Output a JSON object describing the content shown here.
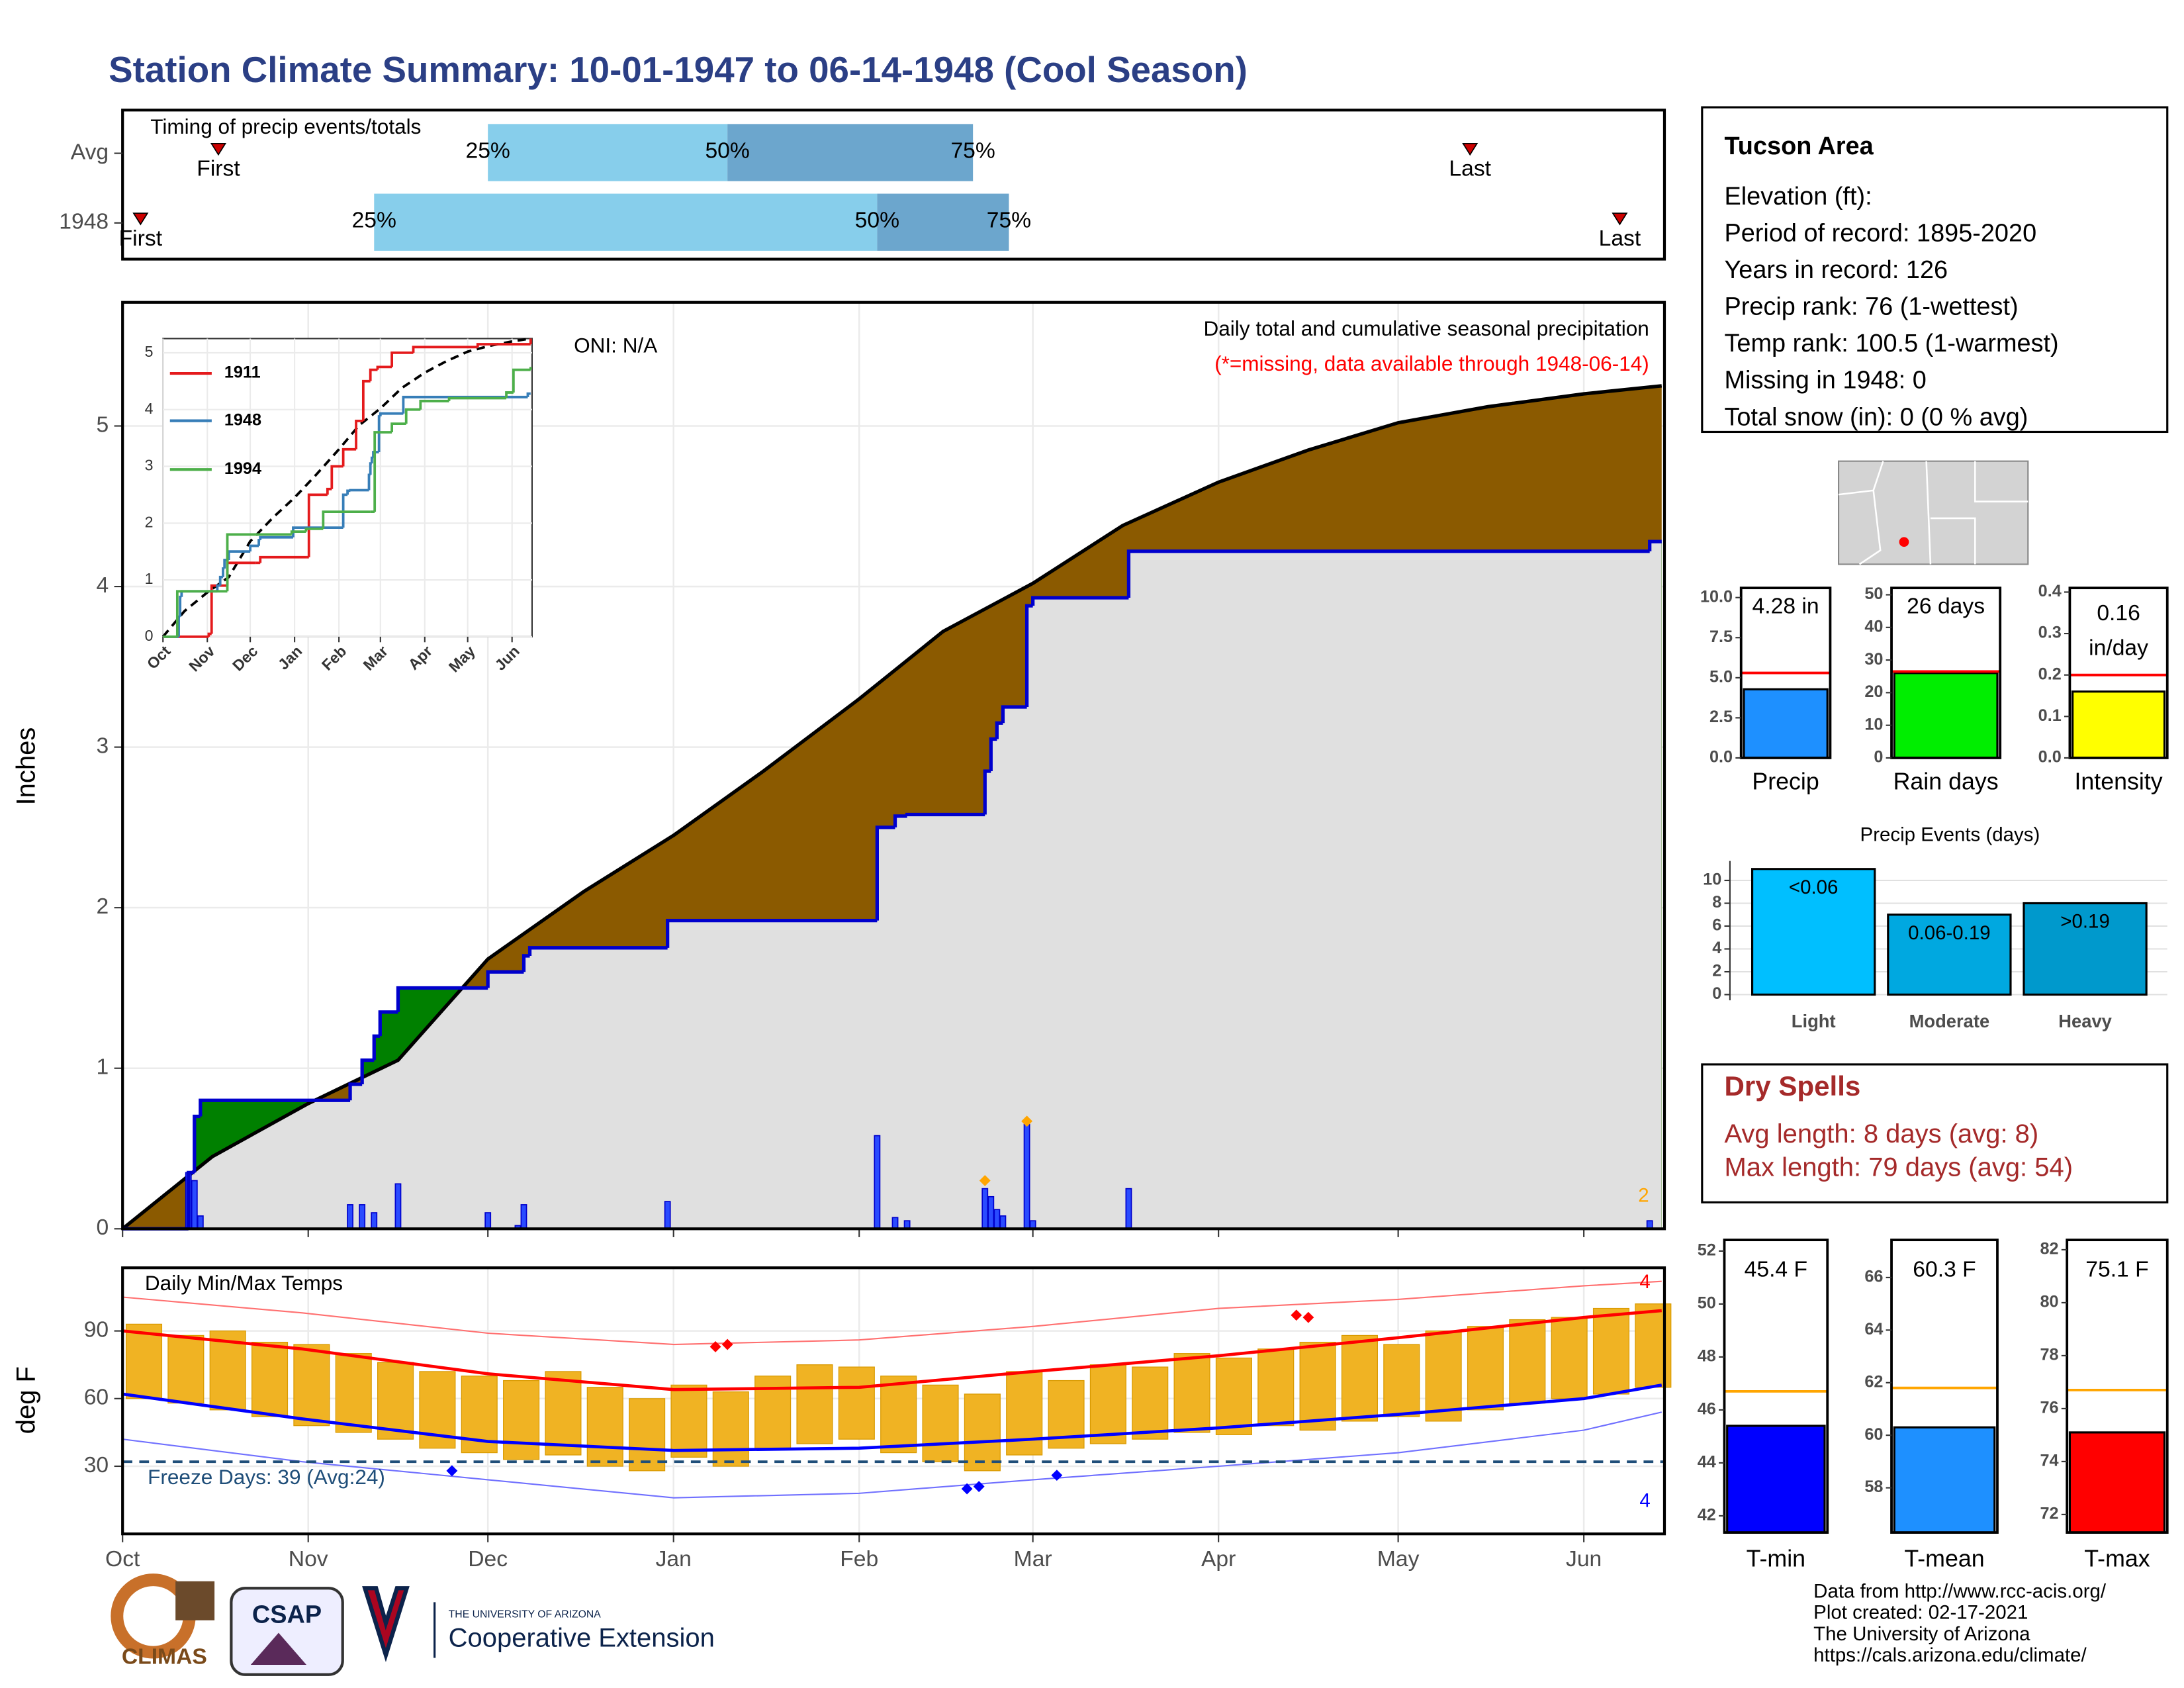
{
  "title": "Station Climate Summary: 10-01-1947 to 06-14-1948 (Cool Season)",
  "info": {
    "title": "Tucson Area",
    "lines": [
      "Elevation (ft):",
      "Period of record: 1895-2020",
      "Years in record: 126",
      "Precip rank: 76 (1-wettest)",
      "Temp rank: 100.5 (1-warmest)",
      "Missing in 1948: 0",
      "Total snow (in): 0 (0 % avg)"
    ]
  },
  "dry_spells": {
    "title": "Dry Spells",
    "lines": [
      "Avg length: 8 days (avg: 8)",
      "Max length: 79 days (avg: 54)"
    ]
  },
  "footer": {
    "lines": [
      "Data from http://www.rcc-acis.org/",
      "Plot created: 02-17-2021",
      "The University of Arizona",
      "https://cals.arizona.edu/climate/"
    ],
    "logos": [
      "CLIMAS",
      "CSAP",
      "THE UNIVERSITY OF ARIZONA",
      "Cooperative Extension"
    ]
  },
  "chart_data": [
    {
      "type": "timeline",
      "title": "Timing of precip events/totals",
      "xlim": [
        0,
        257
      ],
      "rows": [
        {
          "name": "Avg",
          "first": 16,
          "p25": 61,
          "p50": 101,
          "p75": 142,
          "last": 225
        },
        {
          "name": "1948",
          "first": 3,
          "p25": 42,
          "p50": 126,
          "p75": 148,
          "last": 250
        }
      ],
      "labels": {
        "first": "First",
        "p25": "25%",
        "p50": "50%",
        "p75": "75%",
        "last": "Last"
      },
      "colors": [
        "#87ceeb",
        "#6ca6cd"
      ],
      "marker_color": "#cc0000"
    },
    {
      "type": "area",
      "title": "Daily total and cumulative seasonal precipitation",
      "note": "(*=missing, data available through 1948-06-14)",
      "annotation": "ONI: N/A",
      "count_label": "2",
      "y_label": "Inches",
      "xlim": [
        0,
        257
      ],
      "ylim": [
        0,
        5.77
      ],
      "yticks": [
        0,
        1,
        2,
        3,
        4,
        5
      ],
      "grid": true,
      "average": {
        "x": [
          0,
          15,
          31,
          46,
          61,
          77,
          92,
          107,
          123,
          137,
          152,
          167,
          183,
          198,
          213,
          228,
          244,
          257
        ],
        "values": [
          0,
          0.45,
          0.78,
          1.05,
          1.68,
          2.1,
          2.45,
          2.85,
          3.3,
          3.72,
          4.02,
          4.38,
          4.65,
          4.85,
          5.02,
          5.12,
          5.2,
          5.25
        ],
        "color": "#8b5a00"
      },
      "year": {
        "x": [
          0,
          11,
          12,
          13,
          38,
          40,
          42,
          43,
          46,
          61,
          67,
          68,
          91,
          126,
          129,
          131,
          144,
          145,
          146,
          147,
          151,
          152,
          168,
          255
        ],
        "values": [
          0,
          0.35,
          0.7,
          0.8,
          0.9,
          1.05,
          1.2,
          1.35,
          1.5,
          1.6,
          1.7,
          1.75,
          1.92,
          2.5,
          2.57,
          2.58,
          2.85,
          3.05,
          3.15,
          3.25,
          3.88,
          3.93,
          4.22,
          4.28
        ],
        "color": "#0000cd",
        "above_color": "#008000",
        "below_color": "#e0e0e0"
      },
      "daily": {
        "x": [
          11,
          12,
          13,
          38,
          40,
          42,
          46,
          61,
          66,
          67,
          91,
          126,
          129,
          131,
          144,
          145,
          146,
          147,
          151,
          152,
          168,
          255
        ],
        "values": [
          0.35,
          0.3,
          0.08,
          0.15,
          0.15,
          0.1,
          0.28,
          0.1,
          0.02,
          0.15,
          0.17,
          0.58,
          0.07,
          0.05,
          0.25,
          0.2,
          0.12,
          0.08,
          0.65,
          0.05,
          0.25,
          0.05
        ],
        "color": "#2a4bff"
      },
      "flagged": {
        "x": [
          144,
          151
        ],
        "values": [
          0.3,
          0.67
        ],
        "color": "#ffa500"
      }
    },
    {
      "type": "line",
      "xlim": [
        0,
        258
      ],
      "ylim": [
        0,
        5.25
      ],
      "yticks": [
        0,
        1,
        2,
        3,
        4,
        5
      ],
      "series": [
        {
          "name": "1911",
          "color": "#e41a1c",
          "x": [
            0,
            32,
            34,
            45,
            65,
            68,
            100,
            102,
            115,
            118,
            125,
            126,
            135,
            140,
            145,
            150,
            160,
            175,
            220,
            257
          ],
          "values": [
            0,
            0.05,
            0.9,
            1.3,
            1.3,
            1.4,
            1.4,
            2.5,
            2.6,
            3.0,
            3.0,
            3.3,
            3.8,
            4.5,
            4.7,
            4.75,
            5.0,
            5.1,
            5.15,
            5.25
          ]
        },
        {
          "name": "1948",
          "color": "#377eb8"
        },
        {
          "name": "1994",
          "color": "#4daf4a",
          "x": [
            0,
            10,
            35,
            45,
            90,
            100,
            110,
            112,
            145,
            148,
            160,
            170,
            180,
            200,
            240,
            245,
            257
          ],
          "values": [
            0,
            0.8,
            0.8,
            1.8,
            1.85,
            1.9,
            1.9,
            2.2,
            2.2,
            3.6,
            3.75,
            4.0,
            4.15,
            4.2,
            4.3,
            4.7,
            4.75
          ]
        }
      ]
    },
    {
      "type": "range-bar",
      "title": "Daily Min/Max Temps",
      "y_label": "deg F",
      "xlim": [
        0,
        257
      ],
      "ylim": [
        0,
        118
      ],
      "yticks": [
        30,
        60,
        90
      ],
      "grid": true,
      "xticks": [
        {
          "value": 0,
          "label": "Oct"
        },
        {
          "value": 31,
          "label": "Nov"
        },
        {
          "value": 61,
          "label": "Dec"
        },
        {
          "value": 92,
          "label": "Jan"
        },
        {
          "value": 123,
          "label": "Feb"
        },
        {
          "value": 152,
          "label": "Mar"
        },
        {
          "value": 183,
          "label": "Apr"
        },
        {
          "value": 213,
          "label": "May"
        },
        {
          "value": 244,
          "label": "Jun"
        }
      ],
      "x": [
        0,
        7,
        14,
        21,
        28,
        35,
        42,
        49,
        56,
        63,
        70,
        77,
        84,
        91,
        98,
        105,
        112,
        119,
        126,
        133,
        140,
        147,
        154,
        161,
        168,
        175,
        182,
        189,
        196,
        203,
        210,
        217,
        224,
        231,
        238,
        245,
        252
      ],
      "max": [
        93,
        88,
        90,
        85,
        84,
        80,
        76,
        72,
        70,
        68,
        72,
        65,
        60,
        66,
        63,
        70,
        75,
        74,
        70,
        66,
        62,
        72,
        68,
        75,
        74,
        80,
        78,
        82,
        85,
        88,
        84,
        90,
        92,
        95,
        96,
        100,
        102
      ],
      "min": [
        60,
        58,
        55,
        52,
        48,
        45,
        42,
        38,
        36,
        33,
        35,
        30,
        28,
        34,
        30,
        38,
        40,
        42,
        36,
        32,
        28,
        35,
        38,
        40,
        42,
        45,
        44,
        48,
        46,
        50,
        52,
        50,
        55,
        58,
        60,
        62,
        65
      ],
      "bar_color": "#f0b323",
      "normal": {
        "x": [
          0,
          30,
          61,
          92,
          123,
          152,
          183,
          213,
          244,
          257
        ],
        "max": [
          90,
          82,
          71,
          64,
          65,
          72,
          79,
          87,
          96,
          99
        ],
        "min": [
          62,
          51,
          41,
          37,
          38,
          42,
          47,
          53,
          60,
          66
        ]
      },
      "record": {
        "x": [
          0,
          30,
          61,
          92,
          123,
          152,
          183,
          213,
          244,
          257
        ],
        "high": [
          105,
          98,
          89,
          84,
          86,
          92,
          100,
          104,
          110,
          112
        ],
        "low": [
          42,
          32,
          24,
          16,
          18,
          24,
          30,
          36,
          46,
          54
        ]
      },
      "records_set": {
        "high": {
          "x": [
            99,
            101,
            196,
            198
          ],
          "values": [
            83,
            84,
            97,
            96
          ],
          "color": "#ff0000",
          "count_label": "4"
        },
        "low": {
          "x": [
            55,
            141,
            143,
            156
          ],
          "values": [
            28,
            20,
            21,
            26
          ],
          "color": "#0000ff",
          "count_label": "4"
        }
      },
      "freeze": {
        "value": 32,
        "label": "Freeze Days: 39 (Avg:24)",
        "color": "#1f4e79"
      }
    },
    {
      "type": "bar",
      "categories": [
        "Precip"
      ],
      "values": [
        4.28
      ],
      "value_labels": [
        "4.28 in"
      ],
      "average": 5.3,
      "ylim": [
        0,
        10.6
      ],
      "yticks": [
        {
          "value": 0,
          "label": "0.0"
        },
        {
          "value": 2.5,
          "label": "2.5"
        },
        {
          "value": 5,
          "label": "5.0"
        },
        {
          "value": 7.5,
          "label": "7.5"
        },
        {
          "value": 10,
          "label": "10.0"
        }
      ],
      "color": "#1e90ff",
      "average_color": "#ff0000"
    },
    {
      "type": "bar",
      "categories": [
        "Rain days"
      ],
      "values": [
        26
      ],
      "value_labels": [
        "26 days"
      ],
      "average": 26.5,
      "ylim": [
        0,
        52.1
      ],
      "yticks": [
        0,
        10,
        20,
        30,
        40,
        50
      ],
      "color": "#00ee00",
      "average_color": "#ff0000"
    },
    {
      "type": "bar",
      "categories": [
        "Intensity"
      ],
      "values": [
        0.16
      ],
      "unit_label": "in/day",
      "average": 0.2,
      "ylim": [
        0,
        0.41
      ],
      "yticks": [
        {
          "value": 0,
          "label": "0.0"
        },
        {
          "value": 0.1,
          "label": "0.1"
        },
        {
          "value": 0.2,
          "label": "0.2"
        },
        {
          "value": 0.3,
          "label": "0.3"
        },
        {
          "value": 0.4,
          "label": "0.4"
        }
      ],
      "color": "#ffff00",
      "average_color": "#ff0000"
    },
    {
      "type": "bar",
      "title": "Precip Events (days)",
      "categories": [
        "Light",
        "Moderate",
        "Heavy"
      ],
      "values": [
        11,
        7,
        8
      ],
      "bar_labels": [
        "<0.06",
        "0.06-0.19",
        ">0.19"
      ],
      "colors": [
        "#00bfff",
        "#00a8e0",
        "#0099cc"
      ],
      "ylim": [
        -0.5,
        11.7
      ],
      "yticks": [
        0,
        2,
        4,
        6,
        8,
        10
      ],
      "grid": true
    },
    {
      "type": "bar",
      "categories": [
        "T-min"
      ],
      "values": [
        45.4
      ],
      "value_labels": [
        "45.4 F"
      ],
      "average": 46.7,
      "ylim": [
        41.37,
        52.42
      ],
      "yticks": [
        42,
        44,
        46,
        48,
        50,
        52
      ],
      "color": "#0000ff",
      "average_color": "#ffa500"
    },
    {
      "type": "bar",
      "categories": [
        "T-mean"
      ],
      "values": [
        60.3
      ],
      "value_labels": [
        "60.3 F"
      ],
      "average": 61.8,
      "ylim": [
        56.3,
        67.43
      ],
      "yticks": [
        58,
        60,
        62,
        64,
        66
      ],
      "color": "#1e90ff",
      "average_color": "#ffa500"
    },
    {
      "type": "bar",
      "categories": [
        "T-max"
      ],
      "values": [
        75.1
      ],
      "value_labels": [
        "75.1 F"
      ],
      "average": 76.7,
      "ylim": [
        71.32,
        82.37
      ],
      "yticks": [
        72,
        74,
        76,
        78,
        80,
        82
      ],
      "color": "#ff0000",
      "average_color": "#ffa500"
    }
  ]
}
